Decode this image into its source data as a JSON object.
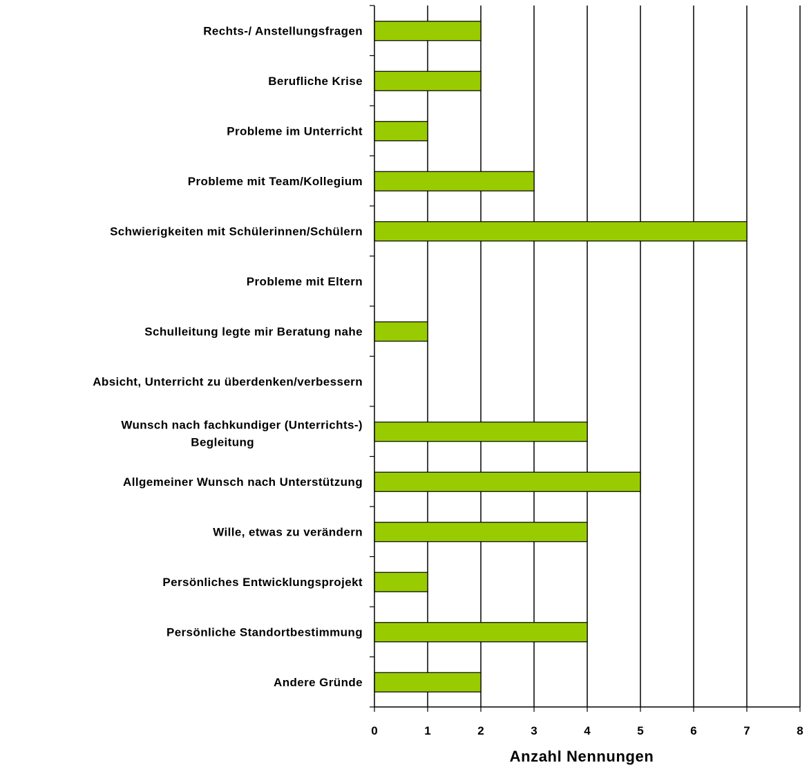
{
  "chart_data": {
    "type": "bar",
    "orientation": "horizontal",
    "categories": [
      "Rechts-/ Anstellungsfragen",
      "Berufliche Krise",
      "Probleme im Unterricht",
      "Probleme mit Team/Kollegium",
      "Schwierigkeiten mit Schülerinnen/Schülern",
      "Probleme mit Eltern",
      "Schulleitung legte mir Beratung nahe",
      "Absicht, Unterricht zu überdenken/verbessern",
      "Wunsch nach fachkundiger (Unterrichts-) Begleitung",
      "Allgemeiner Wunsch nach Unterstützung",
      "Wille, etwas zu verändern",
      "Persönliches Entwicklungsprojekt",
      "Persönliche Standortbestimmung",
      "Andere Gründe"
    ],
    "values": [
      2,
      2,
      1,
      3,
      7,
      0,
      1,
      0,
      4,
      5,
      4,
      1,
      4,
      2
    ],
    "xlabel": "Anzahl Nennungen",
    "xlim": [
      0,
      8
    ],
    "xticks": [
      0,
      1,
      2,
      3,
      4,
      5,
      6,
      7,
      8
    ],
    "grid": "vertical",
    "bar_color": "#99cc00",
    "bar_edge_color": "#000000"
  }
}
